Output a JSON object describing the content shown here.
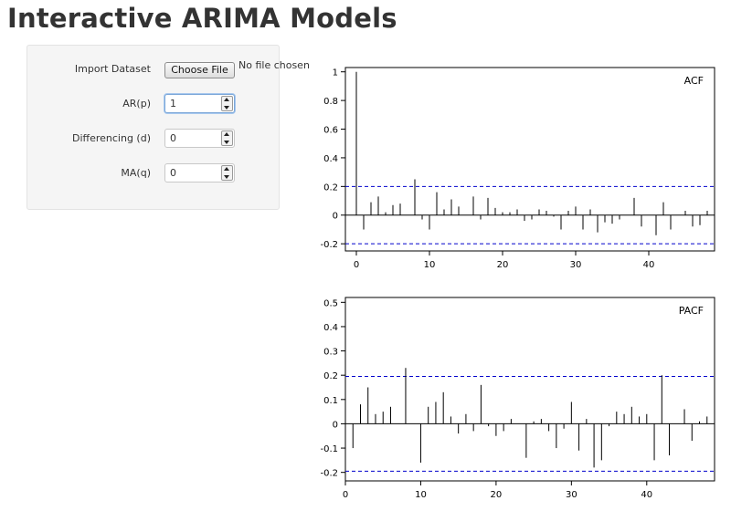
{
  "page": {
    "title": "Interactive ARIMA Models"
  },
  "sidebar": {
    "import": {
      "label": "Import Dataset",
      "button": "Choose File",
      "status": "No file chosen"
    },
    "ar": {
      "label": "AR(p)",
      "value": "1"
    },
    "diff": {
      "label": "Differencing (d)",
      "value": "0"
    },
    "ma": {
      "label": "MA(q)",
      "value": "0"
    }
  },
  "colors": {
    "confidence_line": "#0000cc",
    "bar": "#000000"
  },
  "chart_data": [
    {
      "type": "bar",
      "title": "ACF",
      "xlim": [
        -1.5,
        49
      ],
      "ylim": [
        -0.25,
        1.03
      ],
      "yticks": [
        -0.2,
        0,
        0.2,
        0.4,
        0.6,
        0.8,
        1
      ],
      "ytick_labels": [
        "-0.2",
        "0",
        "0.2",
        "0.4",
        "0.6",
        "0.8",
        "1"
      ],
      "xticks": [
        0,
        10,
        20,
        30,
        40
      ],
      "xtick_labels": [
        "0",
        "10",
        "20",
        "30",
        "40"
      ],
      "conf": 0.2,
      "x": [
        0,
        1,
        2,
        3,
        4,
        5,
        6,
        7,
        8,
        9,
        10,
        11,
        12,
        13,
        14,
        15,
        16,
        17,
        18,
        19,
        20,
        21,
        22,
        23,
        24,
        25,
        26,
        27,
        28,
        29,
        30,
        31,
        32,
        33,
        34,
        35,
        36,
        37,
        38,
        39,
        40,
        41,
        42,
        43,
        44,
        45,
        46,
        47,
        48
      ],
      "values": [
        1.0,
        -0.1,
        0.09,
        0.13,
        0.02,
        0.07,
        0.08,
        0.0,
        0.25,
        -0.03,
        -0.1,
        0.16,
        0.04,
        0.11,
        0.06,
        0.0,
        0.13,
        -0.03,
        0.12,
        0.05,
        0.02,
        0.02,
        0.04,
        -0.04,
        -0.03,
        0.04,
        0.03,
        -0.01,
        -0.1,
        0.03,
        0.06,
        -0.1,
        0.04,
        -0.12,
        -0.05,
        -0.06,
        -0.03,
        0.0,
        0.12,
        -0.08,
        0.0,
        -0.14,
        0.09,
        -0.1,
        0.0,
        0.03,
        -0.08,
        -0.07,
        0.03
      ]
    },
    {
      "type": "bar",
      "title": "PACF",
      "xlim": [
        0,
        49
      ],
      "ylim": [
        -0.235,
        0.52
      ],
      "yticks": [
        -0.2,
        -0.1,
        0,
        0.1,
        0.2,
        0.3,
        0.4,
        0.5
      ],
      "ytick_labels": [
        "-0.2",
        "-0.1",
        "0",
        "0.1",
        "0.2",
        "0.3",
        "0.4",
        "0.5"
      ],
      "xticks": [
        0,
        10,
        20,
        30,
        40
      ],
      "xtick_labels": [
        "0",
        "10",
        "20",
        "30",
        "40"
      ],
      "conf": 0.195,
      "x": [
        1,
        2,
        3,
        4,
        5,
        6,
        7,
        8,
        9,
        10,
        11,
        12,
        13,
        14,
        15,
        16,
        17,
        18,
        19,
        20,
        21,
        22,
        23,
        24,
        25,
        26,
        27,
        28,
        29,
        30,
        31,
        32,
        33,
        34,
        35,
        36,
        37,
        38,
        39,
        40,
        41,
        42,
        43,
        44,
        45,
        46,
        47,
        48
      ],
      "values": [
        -0.1,
        0.08,
        0.15,
        0.04,
        0.05,
        0.07,
        0.0,
        0.23,
        0.0,
        -0.16,
        0.07,
        0.09,
        0.13,
        0.03,
        -0.04,
        0.04,
        -0.03,
        0.16,
        -0.01,
        -0.05,
        -0.03,
        0.02,
        0.0,
        -0.14,
        0.01,
        0.02,
        -0.03,
        -0.1,
        -0.02,
        0.09,
        -0.11,
        0.02,
        -0.18,
        -0.15,
        -0.01,
        0.05,
        0.04,
        0.07,
        0.03,
        0.04,
        -0.15,
        0.2,
        -0.13,
        0.0,
        0.06,
        -0.07,
        0.01,
        0.03
      ]
    }
  ]
}
